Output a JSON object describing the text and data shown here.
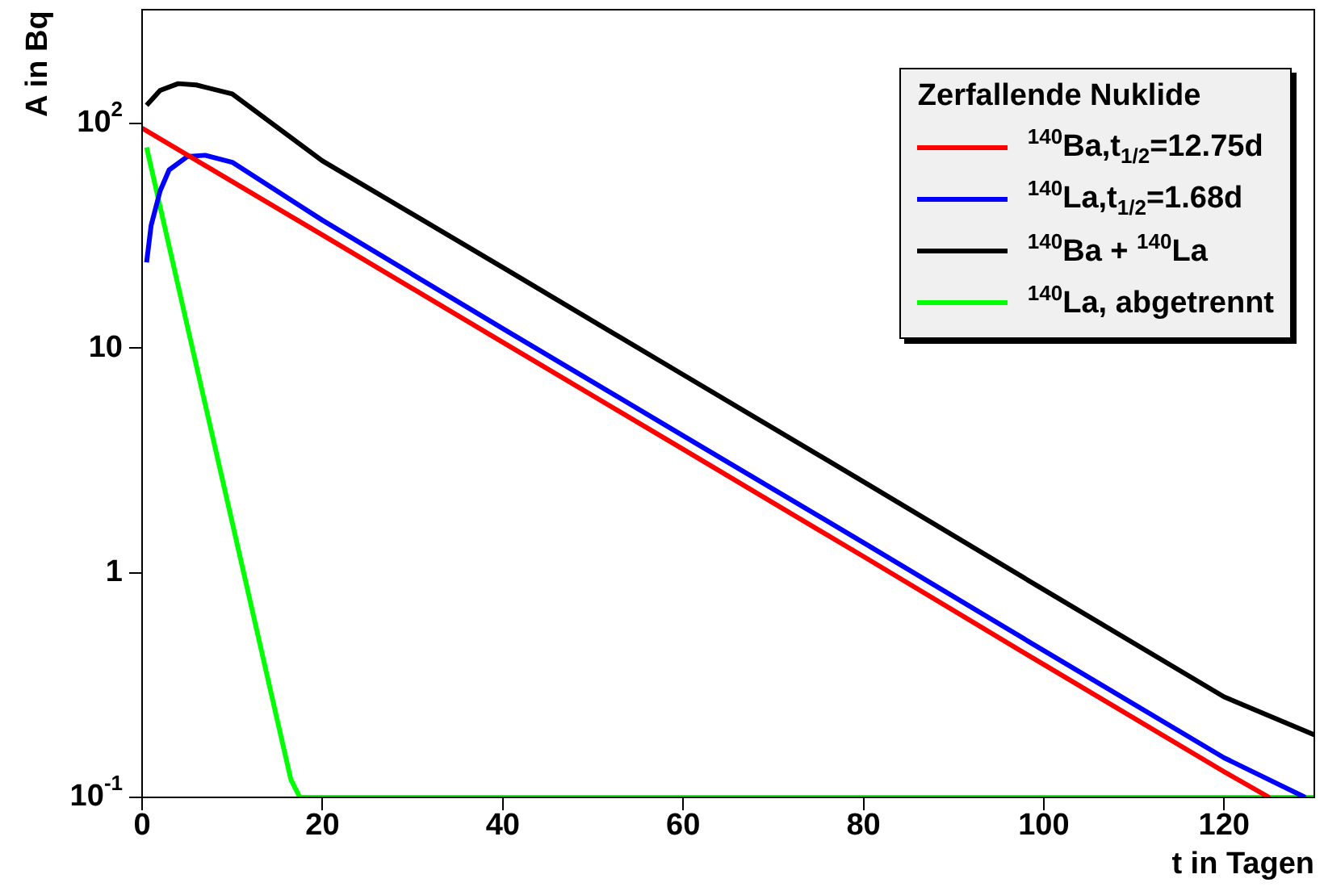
{
  "chart_data": {
    "type": "line",
    "xlabel": "t in Tagen",
    "ylabel": "A in Bq",
    "legend_title": "Zerfallende Nuklide",
    "legend": "top right",
    "log": "y",
    "grid": false,
    "marker": "none",
    "line_style": "solid",
    "xlim": [
      0,
      130
    ],
    "xticks": [
      0,
      20,
      40,
      60,
      80,
      100,
      120
    ],
    "ylim": [
      0.1,
      320
    ],
    "yticks": [
      {
        "value": 0.1,
        "label": "10$^{-1}$"
      },
      1,
      10,
      {
        "value": 100,
        "label": "10$^{2}$"
      }
    ],
    "series": [
      {
        "name": "$^{140}$Ba,t$_{1/2}$=12.75d",
        "color": "#ff0000",
        "x": [
          0,
          20,
          40,
          60,
          80,
          100,
          120,
          125
        ],
        "values": [
          95,
          31.8,
          10.6,
          3.54,
          1.18,
          0.39,
          0.13,
          0.1
        ]
      },
      {
        "name": "$^{140}$La,t$_{1/2}$=1.68d",
        "color": "#0000ff",
        "x": [
          0.5,
          1,
          2,
          3,
          5,
          7,
          10,
          20,
          40,
          60,
          80,
          100,
          120,
          129
        ],
        "values": [
          24,
          35,
          50,
          62,
          71,
          72,
          67,
          37,
          12.2,
          4.07,
          1.36,
          0.45,
          0.15,
          0.1
        ]
      },
      {
        "name": "$^{140}$Ba + $^{140}$La",
        "color": "#000000",
        "x": [
          0.5,
          2,
          4,
          6,
          10,
          20,
          40,
          60,
          80,
          100,
          120,
          130
        ],
        "values": [
          120,
          140,
          150,
          148,
          135,
          68,
          22.8,
          7.6,
          2.54,
          0.84,
          0.28,
          0.19
        ]
      },
      {
        "name": "$^{140}$La, abgetrennt",
        "color": "#00ff00",
        "x": [
          0.5,
          5,
          10,
          15,
          16.5,
          17.5,
          130
        ],
        "values": [
          78,
          12.6,
          1.67,
          0.22,
          0.12,
          0.1,
          0.1
        ]
      }
    ]
  }
}
